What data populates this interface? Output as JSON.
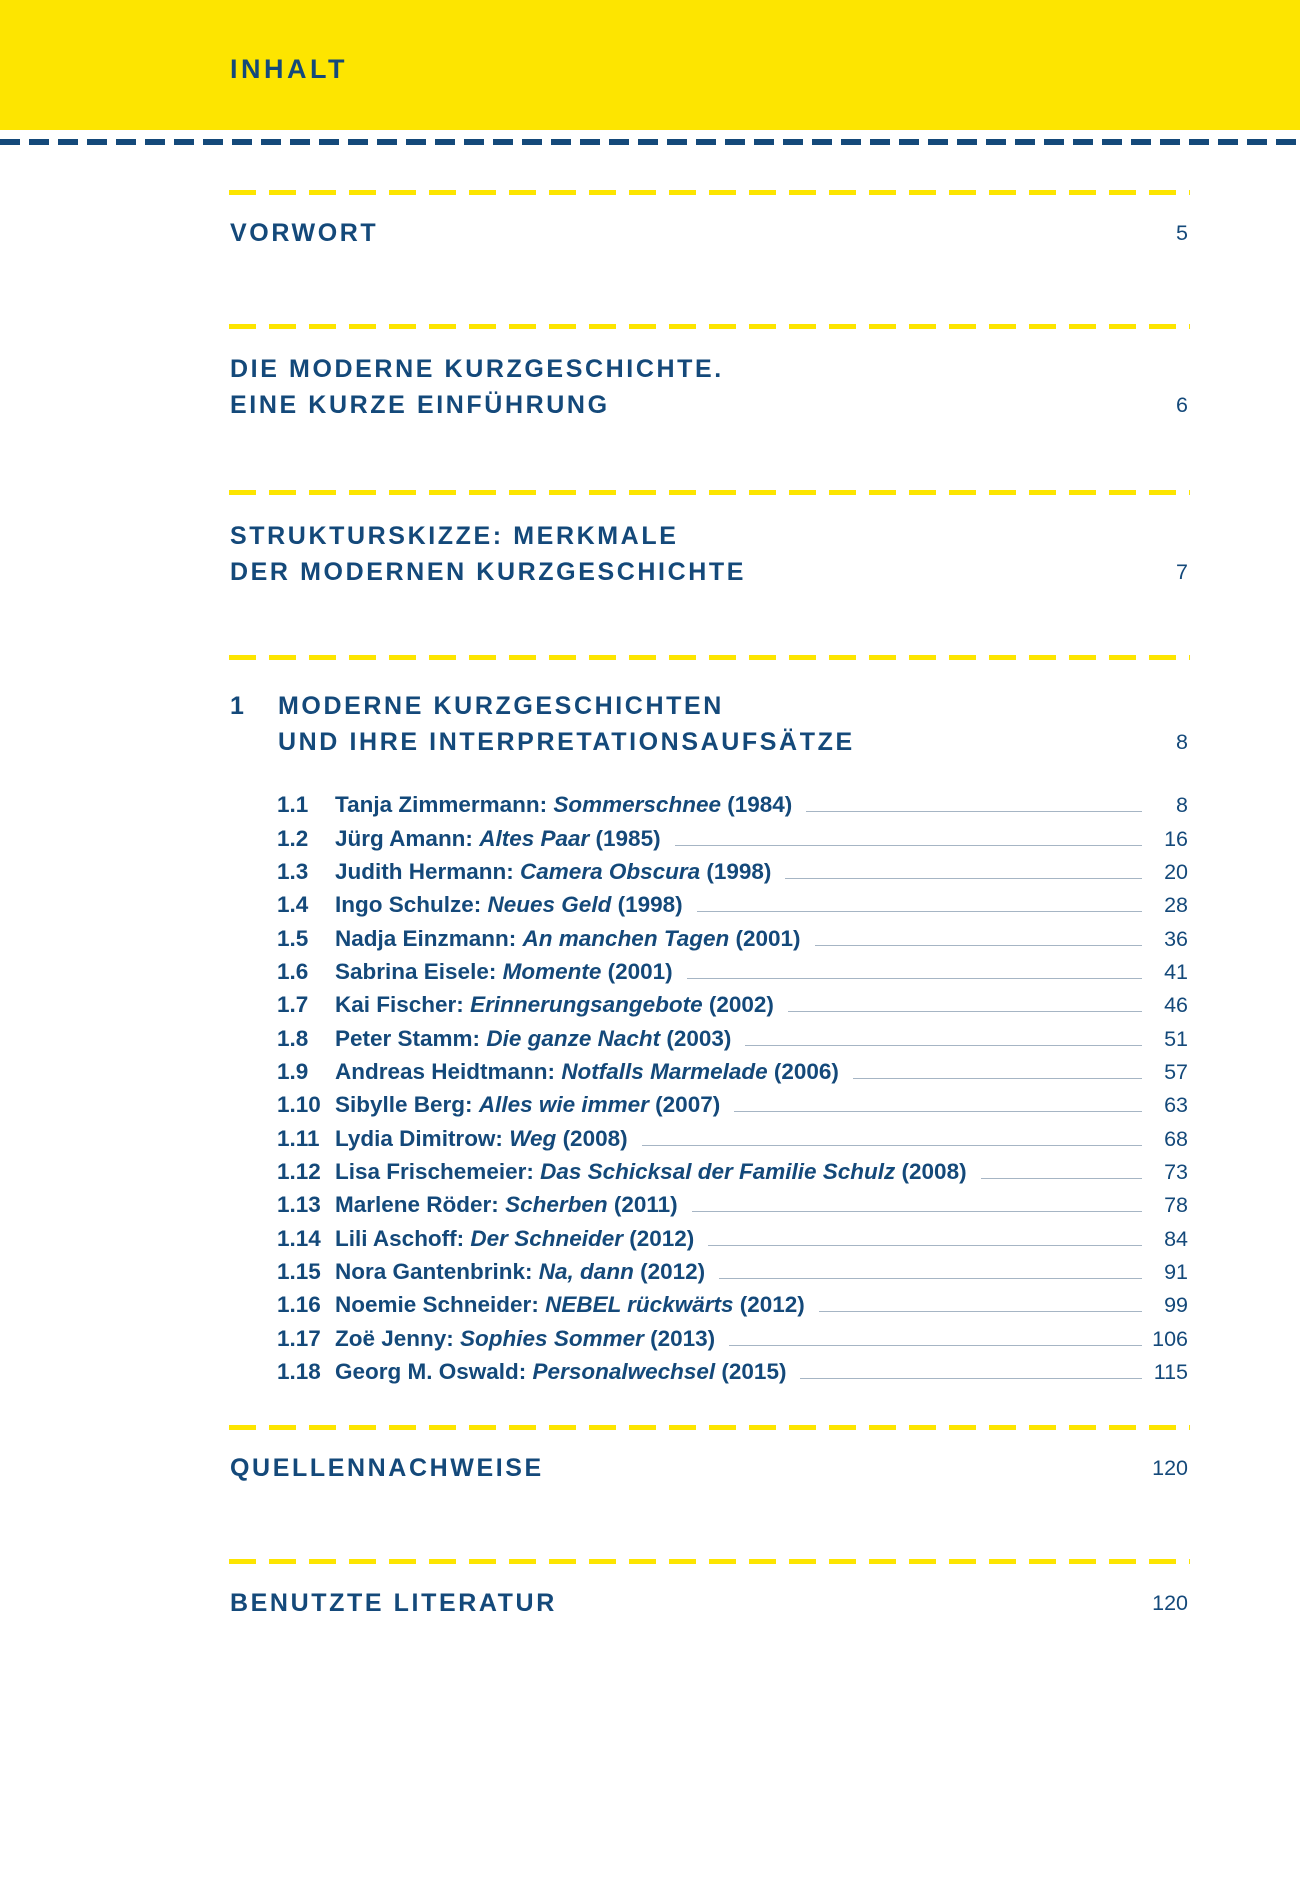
{
  "header": {
    "title": "INHALT"
  },
  "colors": {
    "banner_yellow": "#fde500",
    "navy_text": "#14497a",
    "leader_line": "#a6b5c4"
  },
  "sections": [
    {
      "number": "",
      "lines": [
        "VORWORT"
      ],
      "page": "5"
    },
    {
      "number": "",
      "lines": [
        "DIE MODERNE KURZGESCHICHTE.",
        "EINE KURZE EINFÜHRUNG"
      ],
      "page": "6"
    },
    {
      "number": "",
      "lines": [
        "STRUKTURSKIZZE: MERKMALE",
        "DER MODERNEN KURZGESCHICHTE"
      ],
      "page": "7"
    },
    {
      "number": "1",
      "lines": [
        "MODERNE KURZGESCHICHTEN",
        "UND IHRE INTERPRETATIONSAUFSÄTZE"
      ],
      "page": "8"
    },
    {
      "number": "",
      "lines": [
        "QUELLENNACHWEISE"
      ],
      "page": "120"
    },
    {
      "number": "",
      "lines": [
        "BENUTZTE LITERATUR"
      ],
      "page": "120"
    }
  ],
  "entries": [
    {
      "num": "1.1",
      "author": "Tanja Zimmermann:",
      "title": "Sommerschnee",
      "year": "(1984)",
      "page": "8"
    },
    {
      "num": "1.2",
      "author": "Jürg Amann:",
      "title": "Altes Paar",
      "year": "(1985)",
      "page": "16"
    },
    {
      "num": "1.3",
      "author": "Judith Hermann:",
      "title": "Camera Obscura",
      "year": "(1998)",
      "page": "20"
    },
    {
      "num": "1.4",
      "author": "Ingo Schulze:",
      "title": "Neues Geld",
      "year": "(1998)",
      "page": "28"
    },
    {
      "num": "1.5",
      "author": "Nadja Einzmann:",
      "title": "An manchen Tagen",
      "year": "(2001)",
      "page": "36"
    },
    {
      "num": "1.6",
      "author": "Sabrina Eisele:",
      "title": "Momente",
      "year": "(2001)",
      "page": "41"
    },
    {
      "num": "1.7",
      "author": "Kai Fischer:",
      "title": "Erinnerungsangebote",
      "year": "(2002)",
      "page": "46"
    },
    {
      "num": "1.8",
      "author": "Peter Stamm:",
      "title": "Die ganze Nacht",
      "year": "(2003)",
      "page": "51"
    },
    {
      "num": "1.9",
      "author": "Andreas Heidtmann:",
      "title": "Notfalls Marmelade",
      "year": "(2006)",
      "page": "57"
    },
    {
      "num": "1.10",
      "author": "Sibylle Berg:",
      "title": "Alles wie immer",
      "year": "(2007)",
      "page": "63"
    },
    {
      "num": "1.11",
      "author": "Lydia Dimitrow:",
      "title": "Weg",
      "year": "(2008)",
      "page": "68"
    },
    {
      "num": "1.12",
      "author": "Lisa Frischemeier:",
      "title": "Das Schicksal der Familie Schulz",
      "year": "(2008)",
      "page": "73"
    },
    {
      "num": "1.13",
      "author": "Marlene Röder:",
      "title": "Scherben",
      "year": "(2011)",
      "page": "78"
    },
    {
      "num": "1.14",
      "author": "Lili Aschoff:",
      "title": "Der Schneider",
      "year": "(2012)",
      "page": "84"
    },
    {
      "num": "1.15",
      "author": "Nora Gantenbrink:",
      "title": "Na, dann",
      "year": "(2012)",
      "page": "91"
    },
    {
      "num": "1.16",
      "author": "Noemie Schneider:",
      "title": "NEBEL rückwärts",
      "year": "(2012)",
      "page": "99"
    },
    {
      "num": "1.17",
      "author": "Zoë Jenny:",
      "title": "Sophies Sommer",
      "year": "(2013)",
      "page": "106"
    },
    {
      "num": "1.18",
      "author": "Georg M. Oswald:",
      "title": "Personalwechsel",
      "year": "(2015)",
      "page": "115"
    }
  ]
}
